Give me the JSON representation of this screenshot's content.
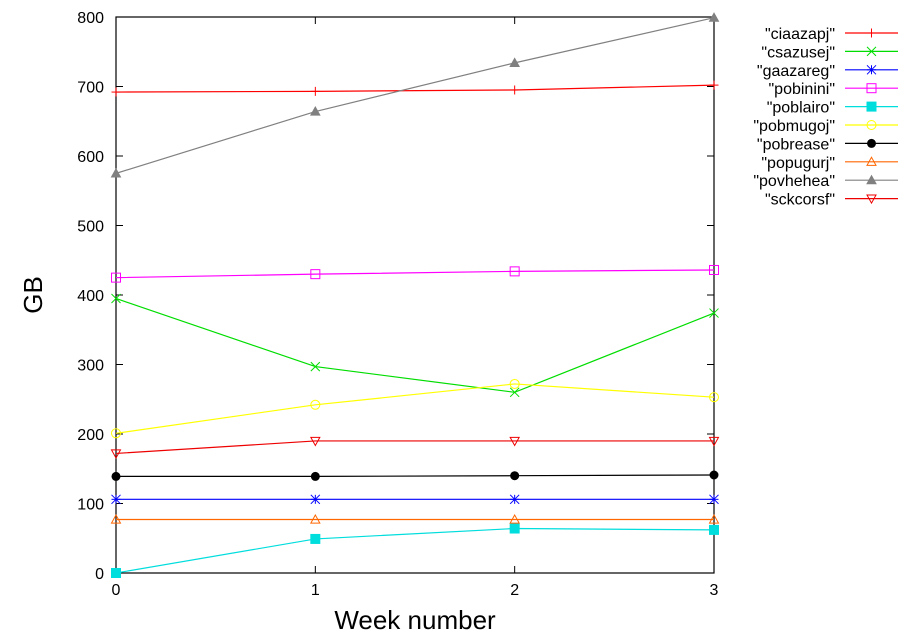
{
  "chart_data": {
    "type": "line",
    "xlabel": "Week number",
    "ylabel": "GB",
    "x": [
      0,
      1,
      2,
      3
    ],
    "xlim": [
      0,
      3
    ],
    "ylim": [
      0,
      800
    ],
    "xticks": [
      "0",
      "1",
      "2",
      "3"
    ],
    "yticks": [
      "0",
      "100",
      "200",
      "300",
      "400",
      "500",
      "600",
      "700",
      "800"
    ],
    "grid": false,
    "legend_position": "top-right outside",
    "series": [
      {
        "name": "\"ciaazapj\"",
        "color": "#ff0000",
        "marker": "plus",
        "values": [
          692,
          693,
          695,
          702
        ]
      },
      {
        "name": "\"csazusej\"",
        "color": "#00dd00",
        "marker": "cross",
        "values": [
          395,
          297,
          260,
          374
        ]
      },
      {
        "name": "\"gaazareg\"",
        "color": "#0000ff",
        "marker": "star",
        "values": [
          106,
          106,
          106,
          106
        ]
      },
      {
        "name": "\"pobinini\"",
        "color": "#ff00ff",
        "marker": "open-square",
        "values": [
          425,
          430,
          434,
          436
        ]
      },
      {
        "name": "\"poblairo\"",
        "color": "#00dddd",
        "marker": "filled-square",
        "values": [
          0,
          49,
          64,
          62
        ]
      },
      {
        "name": "\"pobmugoj\"",
        "color": "#ffff00",
        "marker": "open-circle",
        "values": [
          201,
          242,
          272,
          253
        ]
      },
      {
        "name": "\"pobrease\"",
        "color": "#000000",
        "marker": "filled-circle",
        "values": [
          139,
          139,
          140,
          141
        ]
      },
      {
        "name": "\"popugurj\"",
        "color": "#ff6600",
        "marker": "open-triangle-up",
        "values": [
          77,
          77,
          77,
          77
        ]
      },
      {
        "name": "\"povhehea\"",
        "color": "#808080",
        "marker": "filled-triangle-up",
        "values": [
          575,
          664,
          734,
          799
        ]
      },
      {
        "name": "\"sckcorsf\"",
        "color": "#ee0000",
        "marker": "open-triangle-down",
        "values": [
          172,
          190,
          190,
          190
        ]
      }
    ]
  }
}
